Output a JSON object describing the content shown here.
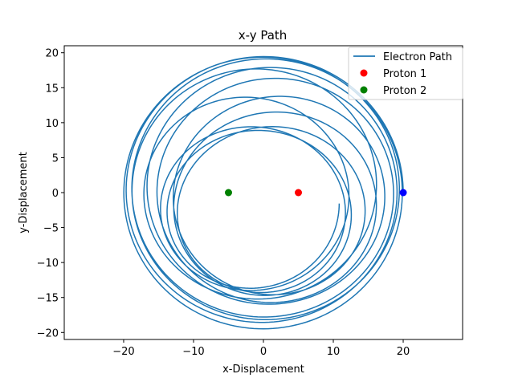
{
  "chart_data": {
    "type": "line",
    "title": "x-y Path",
    "xlabel": "x-Displacement",
    "ylabel": "y-Displacement",
    "xlim": [
      -28.5,
      28.5
    ],
    "ylim": [
      -21,
      21
    ],
    "xticks": [
      -20,
      -10,
      0,
      10,
      20
    ],
    "yticks": [
      -20,
      -15,
      -10,
      -5,
      0,
      5,
      10,
      15,
      20
    ],
    "grid": false,
    "legend_position": "top-right",
    "series": [
      {
        "name": "Electron Path",
        "kind": "line",
        "color": "#1f77b4",
        "path_model": {
          "type": "precessing_ellipse",
          "center": [
            0,
            0
          ],
          "semi_axes_range": [
            [
              12.5,
              11.5
            ],
            [
              20,
              19.5
            ]
          ],
          "loops": 12,
          "start_point": [
            20,
            0
          ]
        }
      },
      {
        "name": "Proton 1",
        "kind": "point",
        "color": "#ff0000",
        "x": 5,
        "y": 0
      },
      {
        "name": "Proton 2",
        "kind": "point",
        "color": "#008000",
        "x": -5,
        "y": 0
      },
      {
        "name": "",
        "kind": "point",
        "color": "#0000ff",
        "x": 20,
        "y": 0
      }
    ]
  }
}
